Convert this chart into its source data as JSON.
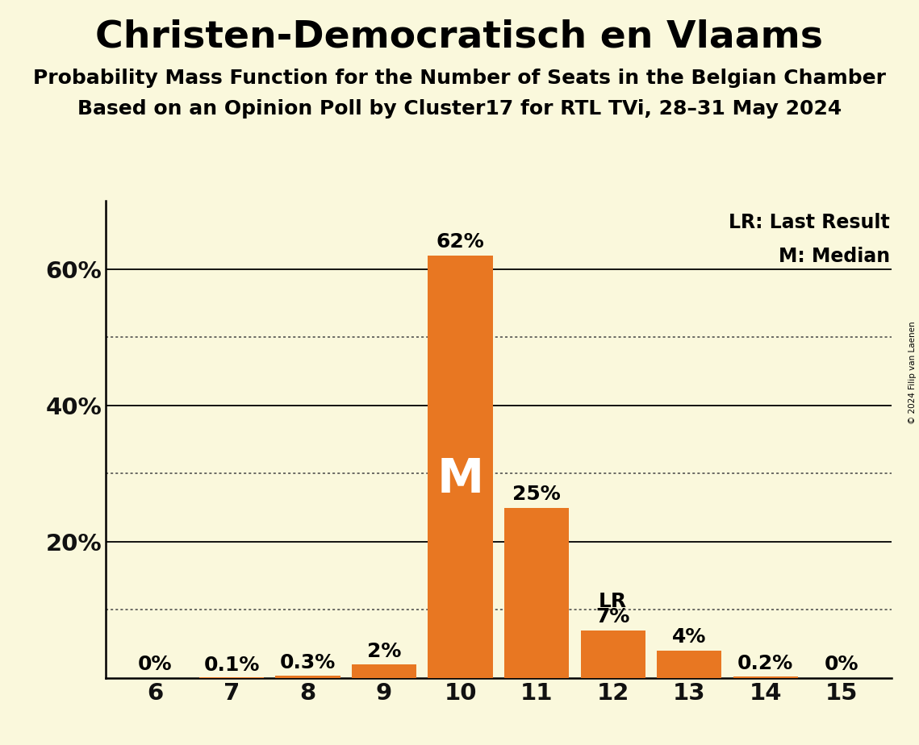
{
  "title": "Christen-Democratisch en Vlaams",
  "subtitle1": "Probability Mass Function for the Number of Seats in the Belgian Chamber",
  "subtitle2": "Based on an Opinion Poll by Cluster17 for RTL TVi, 28–31 May 2024",
  "copyright": "© 2024 Filip van Laenen",
  "categories": [
    6,
    7,
    8,
    9,
    10,
    11,
    12,
    13,
    14,
    15
  ],
  "values": [
    0.0,
    0.001,
    0.003,
    0.02,
    0.62,
    0.25,
    0.07,
    0.04,
    0.002,
    0.0
  ],
  "bar_labels": [
    "0%",
    "0.1%",
    "0.3%",
    "2%",
    "62%",
    "25%",
    "7%",
    "4%",
    "0.2%",
    "0%"
  ],
  "bar_color": "#E87722",
  "background_color": "#FAF8DC",
  "median_seat": 10,
  "lr_seat": 12,
  "ylim": [
    0,
    0.7
  ],
  "yticks": [
    0.0,
    0.2,
    0.4,
    0.6
  ],
  "ytick_labels": [
    "",
    "20%",
    "40%",
    "60%"
  ],
  "dotted_yticks": [
    0.1,
    0.3,
    0.5
  ],
  "legend_lr": "LR: Last Result",
  "legend_m": "M: Median",
  "title_fontsize": 34,
  "subtitle_fontsize": 18,
  "label_fontsize": 18,
  "tick_fontsize": 21,
  "axis_label_color": "#111111"
}
